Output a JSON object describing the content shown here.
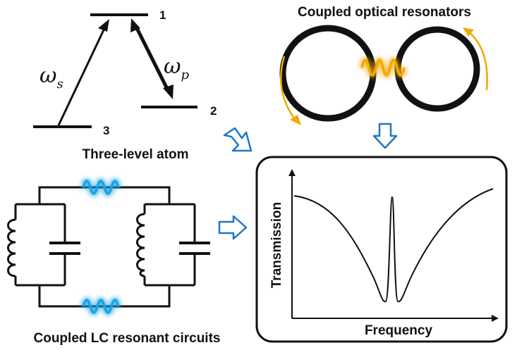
{
  "atom": {
    "title": "Three-level atom",
    "levels": [
      "1",
      "2",
      "3"
    ],
    "omega_s": "ω",
    "omega_s_sub": "s",
    "omega_p": "ω",
    "omega_p_sub": "p"
  },
  "resonators": {
    "title": "Coupled optical resonators"
  },
  "circuits": {
    "title": "Coupled LC resonant circuits"
  },
  "plot": {
    "xlabel": "Frequency",
    "ylabel": "Transmission"
  },
  "colors": {
    "ink": "#111111",
    "arrow_blue": "#1f77c8",
    "glow_blue": "#1fa3e6",
    "glow_orange": "#f2a900"
  }
}
